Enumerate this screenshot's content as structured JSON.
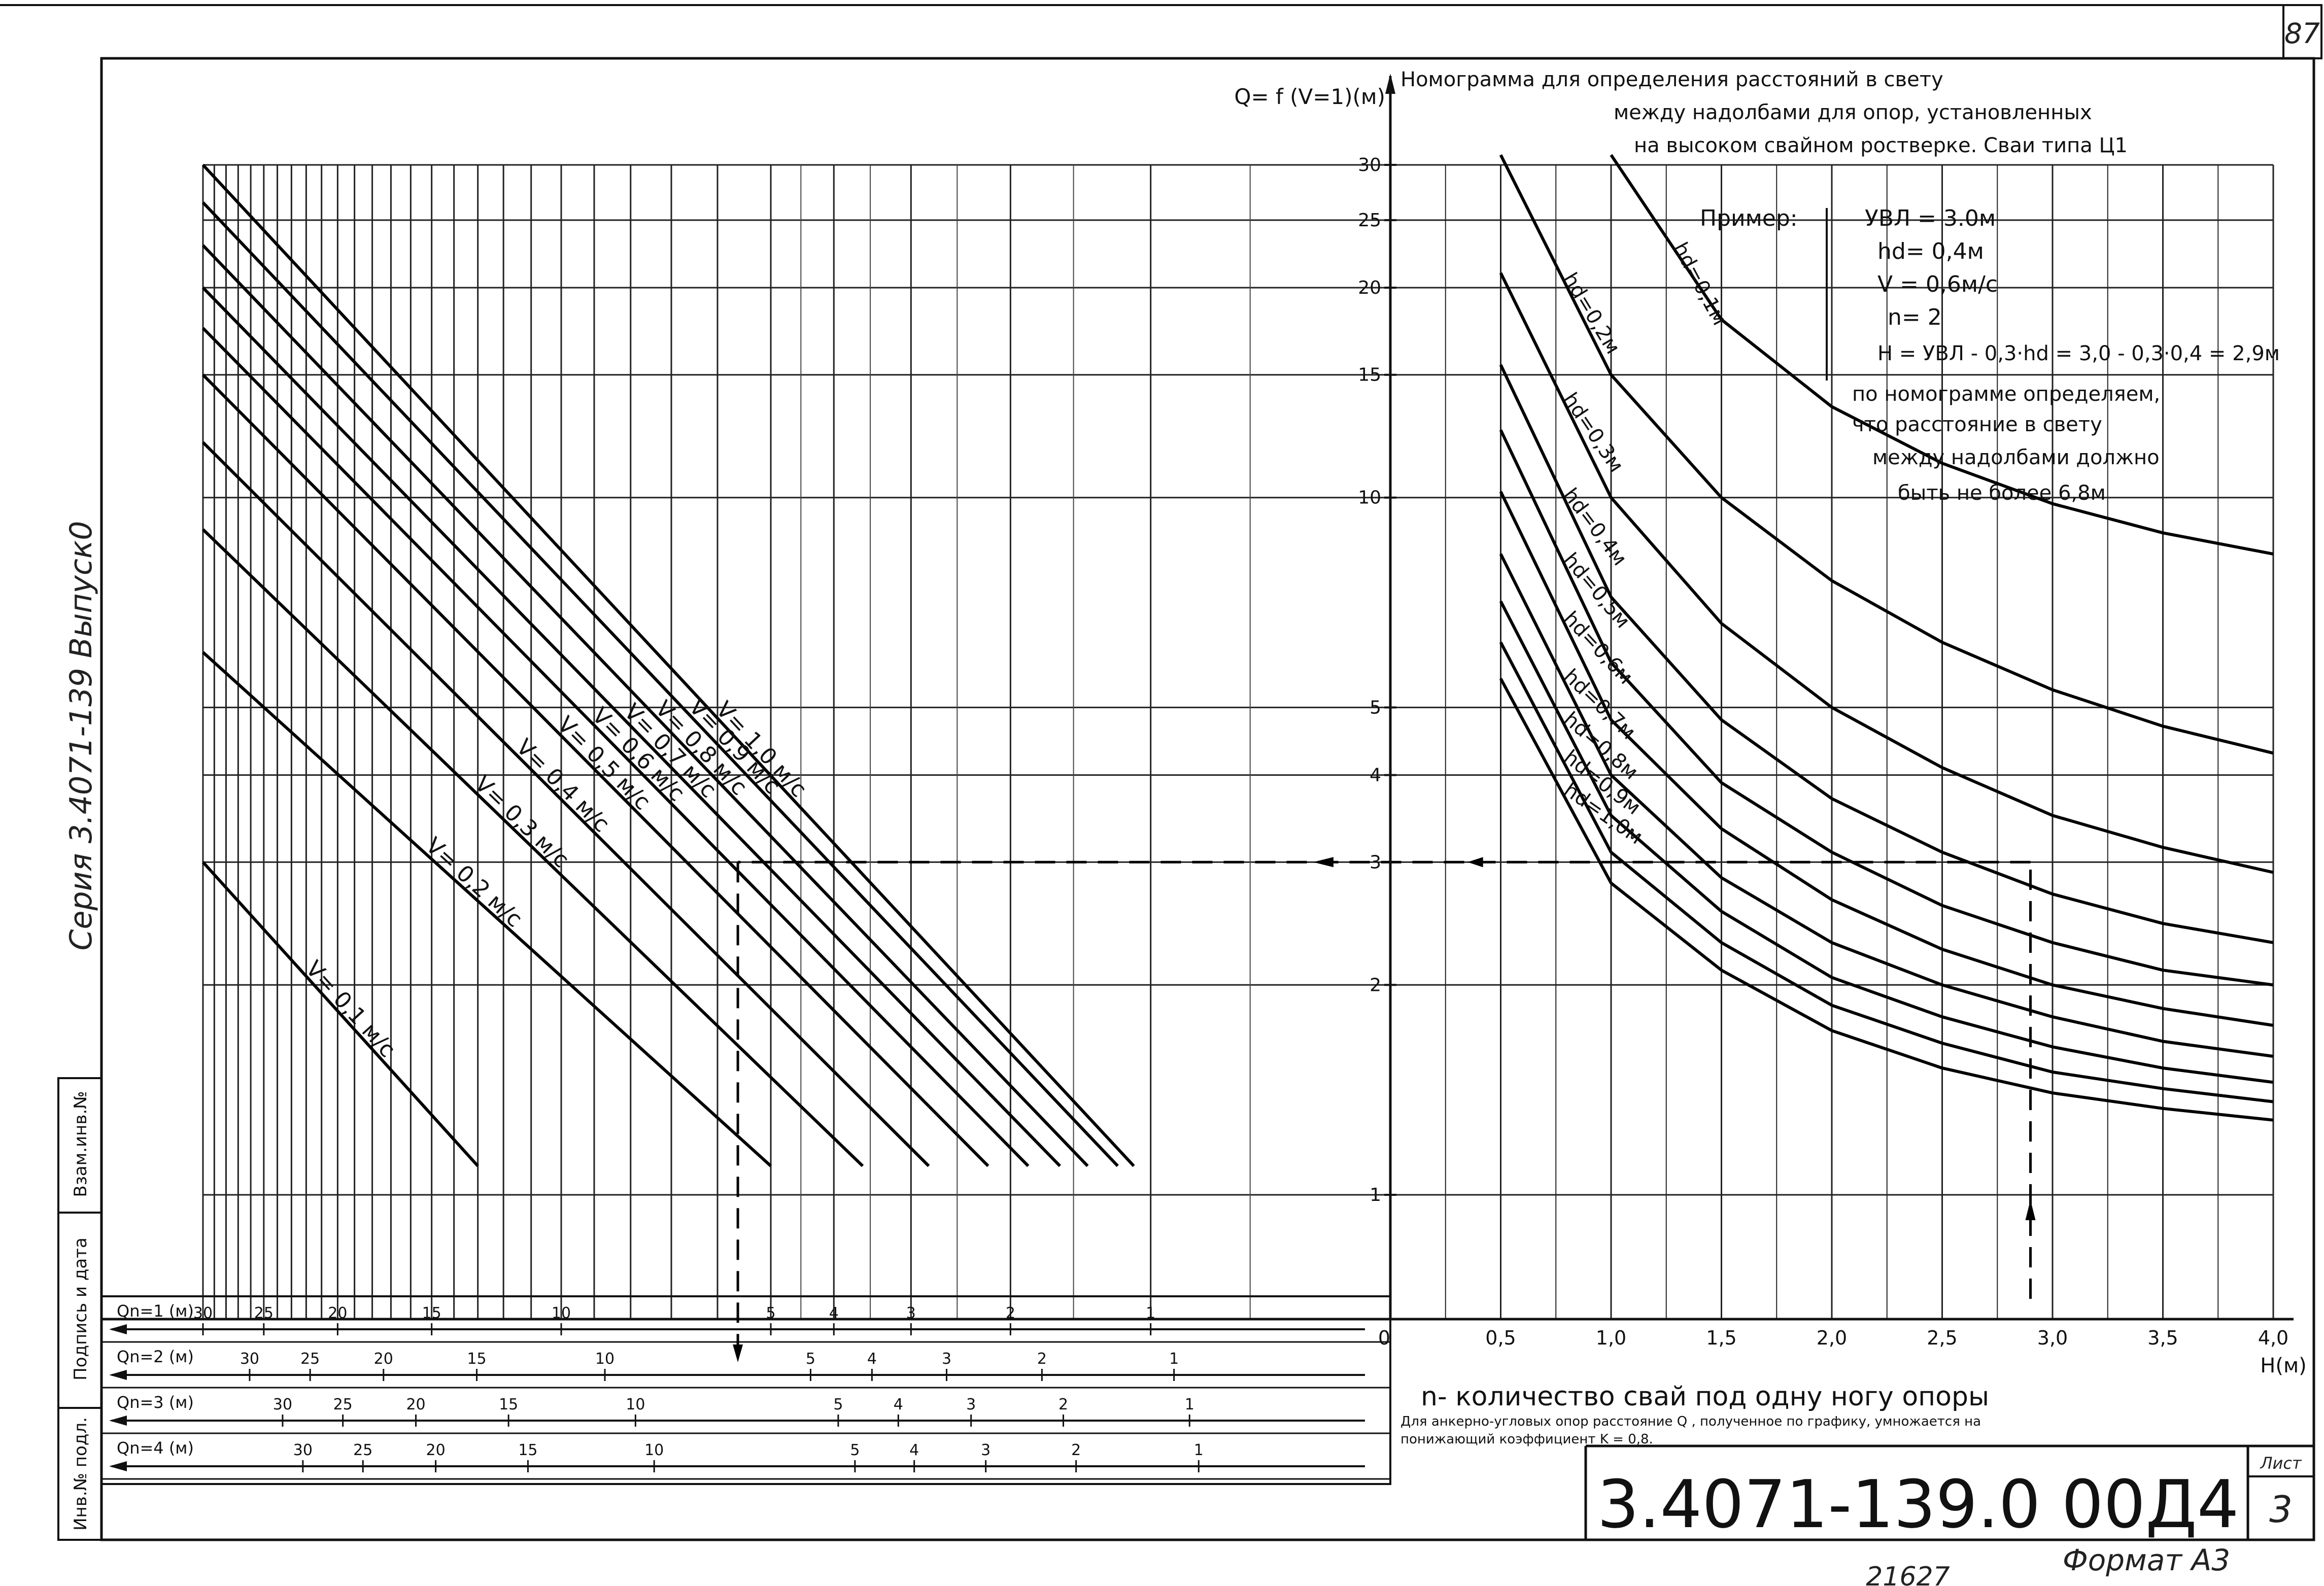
{
  "sheet": {
    "corner_number": "87",
    "series_vertical": "Серия 3.4071-139 Выпуск0",
    "side_boxes": [
      "Инв.№ подл.",
      "Подпись и дата",
      "Взам.инв.№"
    ],
    "doc_code": "3.4071-139.0  00Д4",
    "sheet_label": "Лист",
    "sheet_number": "3",
    "format": "Формат А3",
    "bottom_number": "21627"
  },
  "chart_data": [
    {
      "type": "line",
      "title": "",
      "ylabel": "Q= f (V=1)(м)",
      "y_scale": "log",
      "ylim": [
        1,
        30
      ],
      "y_ticks": [
        1,
        2,
        3,
        4,
        5,
        10,
        15,
        20,
        25,
        30
      ],
      "ylabels": [
        "1",
        "2",
        "3",
        "4",
        "5",
        "10",
        "15",
        "20",
        "25",
        "30"
      ],
      "x_axis_origin": "0",
      "q_axes": [
        {
          "label": "Qn=1 (м)",
          "ticks": [
            30,
            25,
            20,
            15,
            10,
            5,
            4,
            3,
            2,
            1
          ]
        },
        {
          "label": "Qn=2 (м)",
          "ticks": [
            30,
            25,
            20,
            15,
            10,
            5,
            4,
            3,
            2,
            1
          ]
        },
        {
          "label": "Qn=3 (м)",
          "ticks": [
            30,
            25,
            20,
            15,
            10,
            5,
            4,
            3,
            2,
            1
          ]
        },
        {
          "label": "Qn=4 (м)",
          "ticks": [
            30,
            25,
            20,
            15,
            10,
            5,
            4,
            3,
            2,
            1
          ]
        }
      ],
      "series": [
        {
          "name": "V= 1,0 м/с",
          "start": [
            30,
            30
          ],
          "end": [
            1.1,
            1.1
          ]
        },
        {
          "name": "V= 0,9 м/с",
          "start": [
            30,
            26.5
          ],
          "end": [
            1.2,
            1.1
          ]
        },
        {
          "name": "V= 0,8 м/с",
          "start": [
            30,
            23
          ],
          "end": [
            1.4,
            1.1
          ]
        },
        {
          "name": "V= 0,7 м/с",
          "start": [
            30,
            20
          ],
          "end": [
            1.6,
            1.1
          ]
        },
        {
          "name": "V= 0,6 м/с",
          "start": [
            30,
            17.5
          ],
          "end": [
            1.85,
            1.1
          ]
        },
        {
          "name": "V= 0,5 м/с",
          "start": [
            30,
            15
          ],
          "end": [
            2.2,
            1.1
          ]
        },
        {
          "name": "V= 0,4 м/с",
          "start": [
            30,
            12
          ],
          "end": [
            2.8,
            1.1
          ]
        },
        {
          "name": "V= 0,3 м/с",
          "start": [
            30,
            9
          ],
          "end": [
            3.6,
            1.1
          ]
        },
        {
          "name": "V= 0,2 м/с",
          "start": [
            30,
            6
          ],
          "end": [
            5.0,
            1.1
          ]
        },
        {
          "name": "V= 0,1 м/с",
          "start": [
            30,
            3
          ],
          "end": [
            13.0,
            1.1
          ]
        }
      ]
    },
    {
      "type": "line",
      "title": "Номограмма для определения расстояний в свету между надолбами для опор, установленных на высоком свайном ростверке. Сваи типа Ц1",
      "xlabel": "H(м)",
      "xlim": [
        0,
        4.0
      ],
      "x_ticks": [
        0.5,
        1.0,
        1.5,
        2.0,
        2.5,
        3.0,
        3.5,
        4.0
      ],
      "xlabels": [
        "0,5",
        "1,0",
        "1,5",
        "2,0",
        "2,5",
        "3,0",
        "3,5",
        "4,0"
      ],
      "x_origin_label": "0",
      "y_scale": "log",
      "ylim": [
        1,
        30
      ],
      "series": [
        {
          "name": "hd=0,1м",
          "x": [
            1.0,
            1.5,
            2.0,
            2.5,
            3.0,
            3.5,
            4.0
          ],
          "y": [
            31,
            18,
            13.5,
            11.2,
            9.8,
            8.9,
            8.3
          ]
        },
        {
          "name": "hd=0,2м",
          "x": [
            0.5,
            1.0,
            1.5,
            2.0,
            2.5,
            3.0,
            3.5,
            4.0
          ],
          "y": [
            31,
            15,
            10,
            7.6,
            6.2,
            5.3,
            4.7,
            4.3
          ]
        },
        {
          "name": "hd=0,3м",
          "x": [
            0.5,
            1.0,
            1.5,
            2.0,
            2.5,
            3.0,
            3.5,
            4.0
          ],
          "y": [
            21,
            10,
            6.6,
            5.0,
            4.1,
            3.5,
            3.15,
            2.9
          ]
        },
        {
          "name": "hd=0,4м",
          "x": [
            0.5,
            1.0,
            1.5,
            2.0,
            2.5,
            3.0,
            3.5,
            4.0
          ],
          "y": [
            15.5,
            7.2,
            4.8,
            3.7,
            3.1,
            2.7,
            2.45,
            2.3
          ]
        },
        {
          "name": "hd=0,5м",
          "x": [
            0.5,
            1.0,
            1.5,
            2.0,
            2.5,
            3.0,
            3.5,
            4.0
          ],
          "y": [
            12.5,
            5.8,
            3.9,
            3.1,
            2.6,
            2.3,
            2.1,
            2.0
          ]
        },
        {
          "name": "hd=0,6м",
          "x": [
            0.5,
            1.0,
            1.5,
            2.0,
            2.5,
            3.0,
            3.5,
            4.0
          ],
          "y": [
            10.2,
            4.8,
            3.35,
            2.65,
            2.25,
            2.0,
            1.85,
            1.75
          ]
        },
        {
          "name": "hd=0,7м",
          "x": [
            0.5,
            1.0,
            1.5,
            2.0,
            2.5,
            3.0,
            3.5,
            4.0
          ],
          "y": [
            8.3,
            4.0,
            2.85,
            2.3,
            2.0,
            1.8,
            1.66,
            1.58
          ]
        },
        {
          "name": "hd=0,8м",
          "x": [
            0.5,
            1.0,
            1.5,
            2.0,
            2.5,
            3.0,
            3.5,
            4.0
          ],
          "y": [
            7.1,
            3.5,
            2.55,
            2.05,
            1.8,
            1.63,
            1.52,
            1.45
          ]
        },
        {
          "name": "hd=0,9м",
          "x": [
            0.5,
            1.0,
            1.5,
            2.0,
            2.5,
            3.0,
            3.5,
            4.0
          ],
          "y": [
            6.2,
            3.1,
            2.3,
            1.87,
            1.65,
            1.5,
            1.42,
            1.36
          ]
        },
        {
          "name": "hd=1,0м",
          "x": [
            0.5,
            1.0,
            1.5,
            2.0,
            2.5,
            3.0,
            3.5,
            4.0
          ],
          "y": [
            5.5,
            2.8,
            2.1,
            1.72,
            1.52,
            1.4,
            1.33,
            1.28
          ]
        }
      ],
      "example": {
        "heading": "Пример:",
        "lines": [
          "УВЛ = 3.0м",
          "hd= 0,4м",
          "V = 0,6м/с",
          "n= 2",
          "H = УВЛ - 0,3·hd = 3,0 - 0,3·0,4 = 2,9м"
        ],
        "result_lines": [
          "по номограмме определяем,",
          "что расстояние в свету",
          "между надолбами должно",
          "быть не более 6,8м"
        ],
        "H": 2.9,
        "Q": 3.0,
        "Q_axis_value": 5.6
      },
      "notes": [
        "n- количество свай под одну ногу опоры",
        "Для анкерно-угловых опор расстояние Q , полученное по графику, умножается на",
        "понижающий коэффициент K = 0,8."
      ]
    }
  ]
}
